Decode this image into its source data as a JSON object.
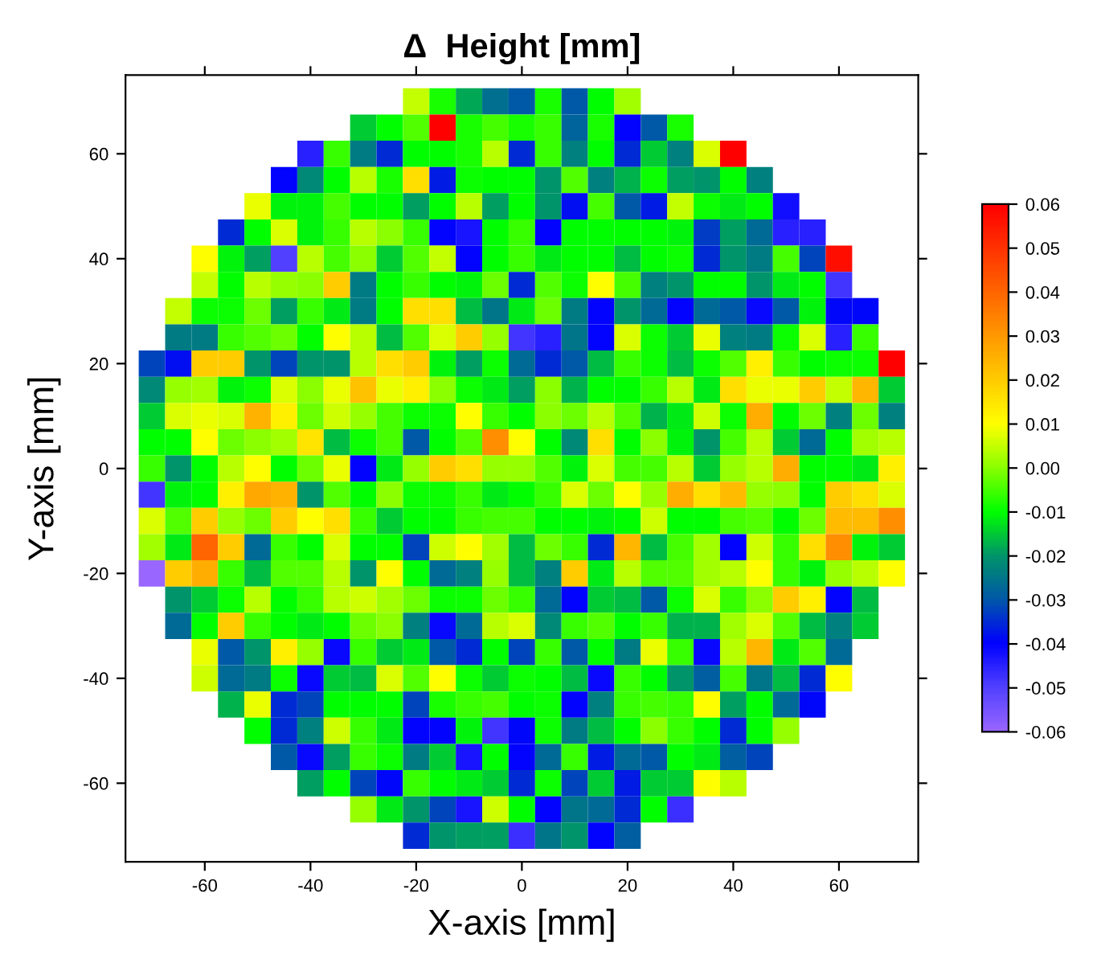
{
  "chart_data": {
    "type": "heatmap",
    "title": "Δ  Height [mm]",
    "xlabel": "X-axis [mm]",
    "ylabel": "Y-axis [mm]",
    "x": [
      -70,
      -65,
      -60,
      -55,
      -50,
      -45,
      -40,
      -35,
      -30,
      -25,
      -20,
      -15,
      -10,
      -5,
      0,
      5,
      10,
      15,
      20,
      25,
      30,
      35,
      40,
      45,
      50,
      55,
      60,
      65,
      70
    ],
    "y": [
      70,
      65,
      60,
      55,
      50,
      45,
      40,
      35,
      30,
      25,
      20,
      15,
      10,
      5,
      0,
      -5,
      -10,
      -15,
      -20,
      -25,
      -30,
      -35,
      -40,
      -45,
      -50,
      -55,
      -60,
      -65,
      -70
    ],
    "xlim": [
      -75,
      75
    ],
    "ylim": [
      -75,
      75
    ],
    "xticks": [
      -60,
      -40,
      -20,
      0,
      20,
      40,
      60
    ],
    "yticks": [
      -60,
      -40,
      -20,
      0,
      20,
      40,
      60
    ],
    "clim": [
      -0.06,
      0.06
    ],
    "cticks": [
      {
        "value": -0.06,
        "label": "-0.06"
      },
      {
        "value": -0.05,
        "label": "-0.05"
      },
      {
        "value": -0.04,
        "label": "-0.04"
      },
      {
        "value": -0.03,
        "label": "-0.03"
      },
      {
        "value": -0.02,
        "label": "-0.02"
      },
      {
        "value": -0.01,
        "label": "-0.01"
      },
      {
        "value": 0,
        "label": "0.00"
      },
      {
        "value": 0.01,
        "label": "0.01"
      },
      {
        "value": 0.02,
        "label": "0.02"
      },
      {
        "value": 0.03,
        "label": "0.03"
      },
      {
        "value": 0.04,
        "label": "0.04"
      },
      {
        "value": 0.05,
        "label": "0.05"
      },
      {
        "value": 0.06,
        "label": "0.06"
      }
    ],
    "colors": [
      "#9966ff",
      "#5040ff",
      "#0000ff",
      "#0058a8",
      "#00946a",
      "#00ff00",
      "#88ff00",
      "#ffff00",
      "#ffcc00",
      "#ff9900",
      "#ff6600",
      "#ff3300",
      "#ff0000"
    ],
    "grid": false,
    "cells": [
      [
        null,
        null,
        null,
        null,
        null,
        null,
        null,
        null,
        null,
        null,
        0.005,
        -0.008,
        -0.018,
        -0.026,
        -0.03,
        -0.008,
        -0.03,
        -0.01,
        0.002,
        null,
        null,
        null,
        null,
        null,
        null,
        null,
        null,
        null,
        null
      ],
      [
        null,
        null,
        null,
        null,
        null,
        null,
        null,
        null,
        -0.015,
        -0.01,
        -0.004,
        0.06,
        -0.008,
        -0.005,
        -0.008,
        -0.006,
        -0.028,
        -0.008,
        -0.04,
        -0.03,
        -0.008,
        null,
        null,
        null,
        null,
        null,
        null,
        null,
        null
      ],
      [
        null,
        null,
        null,
        null,
        null,
        null,
        -0.045,
        -0.006,
        -0.024,
        -0.035,
        -0.01,
        -0.01,
        -0.008,
        0.004,
        -0.035,
        -0.006,
        -0.023,
        -0.01,
        -0.035,
        -0.015,
        -0.023,
        0.007,
        0.06,
        null,
        null,
        null,
        null,
        null,
        null
      ],
      [
        null,
        null,
        null,
        null,
        null,
        -0.04,
        -0.022,
        -0.01,
        0.004,
        -0.008,
        0.016,
        -0.037,
        -0.009,
        -0.01,
        -0.01,
        -0.02,
        -0.004,
        -0.023,
        -0.017,
        -0.009,
        -0.019,
        -0.02,
        -0.01,
        -0.023,
        null,
        null,
        null,
        null,
        null
      ],
      [
        null,
        null,
        null,
        null,
        0.008,
        -0.011,
        -0.011,
        -0.005,
        -0.01,
        -0.01,
        -0.019,
        -0.01,
        0.004,
        -0.019,
        -0.01,
        -0.02,
        -0.038,
        -0.005,
        -0.03,
        -0.037,
        0.005,
        -0.009,
        -0.012,
        -0.01,
        -0.042,
        null,
        null,
        null,
        null
      ],
      [
        null,
        null,
        null,
        -0.035,
        -0.01,
        0.007,
        -0.011,
        -0.006,
        0.004,
        0.0,
        -0.006,
        -0.04,
        -0.043,
        -0.01,
        -0.006,
        -0.04,
        -0.01,
        -0.01,
        -0.01,
        -0.01,
        -0.011,
        -0.033,
        -0.019,
        -0.027,
        -0.045,
        -0.045,
        null,
        null,
        null
      ],
      [
        null,
        null,
        0.01,
        -0.011,
        -0.019,
        -0.05,
        0.004,
        -0.005,
        0.0,
        -0.015,
        -0.004,
        0.005,
        -0.04,
        -0.01,
        -0.006,
        -0.012,
        -0.01,
        -0.01,
        -0.016,
        -0.01,
        -0.009,
        -0.035,
        -0.02,
        -0.024,
        -0.005,
        -0.032,
        0.057,
        null,
        null
      ],
      [
        null,
        null,
        0.005,
        -0.01,
        0.004,
        0.001,
        0.0,
        0.02,
        -0.024,
        -0.01,
        -0.006,
        -0.01,
        -0.011,
        -0.002,
        -0.035,
        -0.004,
        -0.009,
        0.01,
        -0.005,
        -0.023,
        -0.02,
        -0.01,
        -0.01,
        -0.02,
        -0.012,
        -0.01,
        -0.048,
        null,
        null
      ],
      [
        null,
        0.005,
        -0.009,
        -0.009,
        -0.002,
        -0.019,
        -0.006,
        -0.012,
        -0.024,
        -0.01,
        0.016,
        0.016,
        -0.016,
        -0.025,
        -0.012,
        -0.002,
        -0.024,
        -0.04,
        -0.02,
        -0.027,
        -0.04,
        -0.027,
        -0.03,
        -0.041,
        -0.03,
        -0.011,
        -0.039,
        -0.039,
        null
      ],
      [
        null,
        -0.024,
        -0.024,
        -0.006,
        -0.004,
        -0.002,
        -0.01,
        0.01,
        0.004,
        -0.016,
        -0.004,
        0.007,
        0.02,
        0.001,
        -0.048,
        -0.045,
        -0.025,
        -0.04,
        0.007,
        -0.009,
        -0.015,
        0.008,
        -0.023,
        -0.024,
        -0.009,
        0.007,
        -0.045,
        -0.006,
        null
      ],
      [
        -0.032,
        -0.038,
        0.02,
        0.02,
        -0.02,
        -0.032,
        -0.02,
        -0.02,
        0.004,
        0.016,
        0.02,
        -0.011,
        -0.019,
        -0.009,
        -0.027,
        -0.035,
        -0.03,
        -0.016,
        -0.006,
        -0.009,
        -0.016,
        -0.009,
        -0.004,
        0.013,
        -0.006,
        -0.01,
        -0.009,
        -0.009,
        0.06
      ],
      [
        -0.022,
        0.001,
        0.002,
        -0.011,
        -0.009,
        0.007,
        0.0,
        0.008,
        0.022,
        0.008,
        0.013,
        0.0,
        -0.009,
        -0.012,
        -0.019,
        0.0,
        -0.017,
        -0.01,
        -0.01,
        -0.006,
        0.004,
        -0.012,
        0.016,
        0.008,
        0.008,
        0.02,
        0.005,
        0.024,
        -0.015
      ],
      [
        -0.015,
        0.007,
        0.008,
        0.007,
        0.025,
        0.013,
        -0.002,
        0.006,
        0.001,
        -0.005,
        -0.009,
        -0.009,
        0.01,
        -0.006,
        -0.01,
        0.0,
        -0.002,
        0.004,
        -0.004,
        -0.017,
        -0.012,
        0.006,
        -0.009,
        0.026,
        -0.01,
        -0.002,
        -0.023,
        -0.002,
        -0.023
      ],
      [
        -0.01,
        -0.01,
        0.01,
        -0.002,
        0.0,
        0.002,
        0.015,
        -0.016,
        -0.009,
        -0.005,
        -0.03,
        -0.01,
        -0.004,
        0.032,
        0.01,
        -0.01,
        -0.022,
        0.016,
        -0.01,
        0.0,
        -0.011,
        -0.02,
        -0.005,
        0.004,
        -0.015,
        -0.027,
        -0.01,
        0.002,
        0.004
      ],
      [
        -0.006,
        -0.02,
        -0.01,
        0.004,
        0.01,
        -0.01,
        -0.002,
        0.008,
        -0.04,
        -0.012,
        0.001,
        0.02,
        0.016,
        0.001,
        0.001,
        -0.004,
        -0.011,
        0.007,
        -0.005,
        -0.005,
        0.004,
        -0.015,
        0.001,
        0.004,
        0.026,
        -0.01,
        -0.01,
        -0.012,
        0.013
      ],
      [
        -0.048,
        -0.011,
        -0.01,
        0.013,
        0.027,
        0.025,
        -0.02,
        -0.004,
        -0.01,
        0.0,
        -0.009,
        -0.009,
        -0.006,
        -0.012,
        -0.01,
        -0.006,
        0.007,
        -0.002,
        0.01,
        0.001,
        0.026,
        0.016,
        0.023,
        0.001,
        0.0,
        -0.01,
        0.02,
        0.016,
        0.007
      ],
      [
        0.007,
        -0.004,
        0.02,
        0.001,
        -0.002,
        0.02,
        0.01,
        0.016,
        -0.006,
        -0.015,
        -0.01,
        -0.01,
        -0.006,
        -0.005,
        -0.005,
        -0.01,
        -0.01,
        -0.011,
        -0.01,
        0.006,
        -0.01,
        -0.01,
        -0.005,
        -0.004,
        -0.01,
        -0.002,
        0.023,
        0.023,
        0.032
      ],
      [
        0.002,
        -0.012,
        0.04,
        0.02,
        -0.027,
        -0.006,
        -0.01,
        0.007,
        -0.01,
        -0.01,
        -0.032,
        0.006,
        0.01,
        0.002,
        -0.016,
        -0.002,
        -0.006,
        -0.035,
        0.024,
        -0.016,
        -0.005,
        0.002,
        -0.04,
        0.006,
        -0.006,
        0.016,
        0.032,
        -0.011,
        -0.015
      ],
      [
        -0.06,
        0.02,
        0.026,
        -0.006,
        -0.016,
        -0.004,
        -0.004,
        0.004,
        -0.02,
        0.01,
        -0.01,
        -0.027,
        -0.023,
        0.001,
        -0.016,
        -0.023,
        0.02,
        -0.012,
        0.004,
        -0.004,
        -0.004,
        0.002,
        0.004,
        0.01,
        -0.006,
        -0.011,
        0.001,
        0.004,
        0.01
      ],
      [
        null,
        -0.02,
        -0.015,
        -0.009,
        0.004,
        -0.01,
        -0.006,
        0.004,
        0.006,
        0.002,
        -0.002,
        -0.009,
        -0.009,
        -0.002,
        -0.006,
        -0.027,
        -0.04,
        -0.015,
        -0.016,
        -0.03,
        -0.009,
        0.007,
        -0.006,
        0.0,
        0.02,
        0.013,
        -0.04,
        -0.016,
        null
      ],
      [
        null,
        -0.027,
        -0.01,
        0.02,
        -0.006,
        -0.01,
        -0.012,
        -0.01,
        -0.002,
        0.0,
        -0.023,
        -0.041,
        -0.027,
        0.004,
        0.007,
        -0.022,
        -0.006,
        -0.004,
        -0.01,
        -0.006,
        -0.017,
        -0.017,
        0.002,
        0.007,
        -0.004,
        -0.016,
        -0.023,
        -0.015,
        null
      ],
      [
        null,
        null,
        0.008,
        -0.03,
        -0.02,
        0.013,
        0.001,
        -0.041,
        -0.006,
        -0.015,
        -0.012,
        -0.03,
        -0.035,
        -0.01,
        -0.032,
        -0.006,
        -0.03,
        -0.01,
        -0.024,
        0.008,
        -0.006,
        -0.041,
        0.004,
        0.024,
        -0.012,
        -0.004,
        -0.027,
        null,
        null
      ],
      [
        null,
        null,
        0.006,
        -0.027,
        -0.024,
        -0.009,
        -0.041,
        -0.015,
        -0.016,
        0.007,
        -0.004,
        0.01,
        -0.009,
        -0.015,
        -0.009,
        -0.01,
        -0.016,
        -0.041,
        -0.006,
        -0.01,
        -0.02,
        -0.029,
        -0.005,
        -0.025,
        -0.016,
        -0.035,
        0.01,
        null,
        null
      ],
      [
        null,
        null,
        null,
        -0.017,
        0.008,
        -0.035,
        -0.032,
        -0.01,
        -0.01,
        -0.01,
        -0.032,
        -0.008,
        -0.006,
        -0.005,
        -0.01,
        -0.009,
        -0.04,
        -0.023,
        -0.006,
        -0.005,
        -0.006,
        0.01,
        -0.019,
        -0.01,
        -0.027,
        -0.039,
        null,
        null,
        null
      ],
      [
        null,
        null,
        null,
        null,
        -0.01,
        -0.035,
        -0.023,
        0.006,
        -0.006,
        -0.012,
        -0.04,
        -0.04,
        -0.011,
        -0.048,
        -0.039,
        -0.009,
        -0.024,
        -0.016,
        -0.01,
        0.0,
        -0.006,
        -0.01,
        -0.035,
        -0.01,
        0.001,
        null,
        null,
        null,
        null
      ],
      [
        null,
        null,
        null,
        null,
        null,
        -0.03,
        -0.041,
        -0.019,
        -0.006,
        -0.009,
        -0.024,
        -0.015,
        -0.043,
        -0.01,
        -0.04,
        -0.027,
        -0.006,
        -0.037,
        -0.027,
        -0.03,
        -0.01,
        -0.012,
        -0.029,
        -0.032,
        null,
        null,
        null,
        null,
        null
      ],
      [
        null,
        null,
        null,
        null,
        null,
        null,
        -0.019,
        -0.01,
        -0.032,
        -0.039,
        -0.006,
        -0.01,
        -0.012,
        -0.015,
        -0.035,
        -0.009,
        -0.032,
        -0.015,
        -0.037,
        -0.015,
        -0.015,
        0.01,
        0.004,
        null,
        null,
        null,
        null,
        null,
        null
      ],
      [
        null,
        null,
        null,
        null,
        null,
        null,
        null,
        null,
        0.001,
        -0.012,
        -0.02,
        -0.032,
        -0.043,
        0.006,
        -0.01,
        -0.04,
        -0.025,
        -0.027,
        -0.035,
        -0.01,
        -0.047,
        null,
        null,
        null,
        null,
        null,
        null,
        null,
        null
      ],
      [
        null,
        null,
        null,
        null,
        null,
        null,
        null,
        null,
        null,
        null,
        -0.035,
        -0.02,
        -0.019,
        -0.019,
        -0.047,
        -0.025,
        -0.02,
        -0.04,
        -0.029,
        null,
        null,
        null,
        null,
        null,
        null,
        null,
        null,
        null,
        null
      ]
    ]
  }
}
